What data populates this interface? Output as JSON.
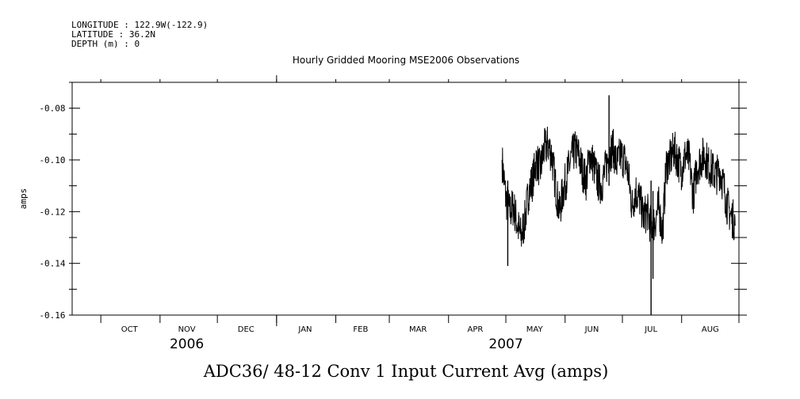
{
  "header": {
    "longitude": "LONGITUDE : 122.9W(-122.9)",
    "latitude": "LATITUDE : 36.2N",
    "depth": "DEPTH (m) : 0"
  },
  "chart_data": {
    "type": "line",
    "title": "Hourly Gridded Mooring MSE2006 Observations",
    "ylabel": "amps",
    "xlabel": "ADC36/ 48-12 Conv 1 Input Current Avg (amps)",
    "x_range": [
      "2006-09-16",
      "2007-08-31"
    ],
    "ylim": [
      -0.16,
      -0.07
    ],
    "y_ticks": [
      -0.08,
      -0.1,
      -0.12,
      -0.14,
      -0.16
    ],
    "y_tick_labels": [
      "-0.08",
      "-0.10",
      "-0.12",
      "-0.14",
      "-0.16"
    ],
    "month_labels": [
      {
        "label": "OCT",
        "date": "2006-10-16"
      },
      {
        "label": "NOV",
        "date": "2006-11-15"
      },
      {
        "label": "DEC",
        "date": "2006-12-16"
      },
      {
        "label": "JAN",
        "date": "2007-01-16"
      },
      {
        "label": "FEB",
        "date": "2007-02-14"
      },
      {
        "label": "MAR",
        "date": "2007-03-16"
      },
      {
        "label": "APR",
        "date": "2007-04-15"
      },
      {
        "label": "MAY",
        "date": "2007-05-16"
      },
      {
        "label": "JUN",
        "date": "2007-06-15"
      },
      {
        "label": "JUL",
        "date": "2007-07-16"
      },
      {
        "label": "AUG",
        "date": "2007-08-16"
      }
    ],
    "year_labels": [
      {
        "label": "2006",
        "date": "2006-11-15"
      },
      {
        "label": "2007",
        "date": "2007-05-01"
      }
    ],
    "series": [
      {
        "color": "#000000",
        "x": [
          "2007-04-29",
          "2007-05-01",
          "2007-05-03",
          "2007-05-05",
          "2007-05-07",
          "2007-05-09",
          "2007-05-11",
          "2007-05-13",
          "2007-05-15",
          "2007-05-17",
          "2007-05-19",
          "2007-05-21",
          "2007-05-23",
          "2007-05-25",
          "2007-05-27",
          "2007-05-29",
          "2007-05-31",
          "2007-06-02",
          "2007-06-04",
          "2007-06-06",
          "2007-06-08",
          "2007-06-10",
          "2007-06-12",
          "2007-06-14",
          "2007-06-16",
          "2007-06-18",
          "2007-06-20",
          "2007-06-22",
          "2007-06-24",
          "2007-06-26",
          "2007-06-28",
          "2007-06-30",
          "2007-07-02",
          "2007-07-04",
          "2007-07-06",
          "2007-07-08",
          "2007-07-10",
          "2007-07-12",
          "2007-07-14",
          "2007-07-16",
          "2007-07-18",
          "2007-07-20",
          "2007-07-22",
          "2007-07-24",
          "2007-07-26",
          "2007-07-28",
          "2007-07-30",
          "2007-08-01",
          "2007-08-03",
          "2007-08-05",
          "2007-08-07",
          "2007-08-09",
          "2007-08-11",
          "2007-08-13",
          "2007-08-15",
          "2007-08-17",
          "2007-08-19",
          "2007-08-21",
          "2007-08-23",
          "2007-08-25",
          "2007-08-27",
          "2007-08-29"
        ],
        "y": [
          -0.1,
          -0.115,
          -0.12,
          -0.118,
          -0.125,
          -0.13,
          -0.123,
          -0.112,
          -0.108,
          -0.1,
          -0.104,
          -0.096,
          -0.094,
          -0.098,
          -0.11,
          -0.12,
          -0.112,
          -0.106,
          -0.1,
          -0.096,
          -0.098,
          -0.104,
          -0.108,
          -0.098,
          -0.102,
          -0.108,
          -0.11,
          -0.104,
          -0.098,
          -0.095,
          -0.102,
          -0.098,
          -0.1,
          -0.105,
          -0.118,
          -0.112,
          -0.115,
          -0.122,
          -0.12,
          -0.126,
          -0.124,
          -0.118,
          -0.128,
          -0.102,
          -0.1,
          -0.096,
          -0.1,
          -0.104,
          -0.098,
          -0.1,
          -0.114,
          -0.103,
          -0.1,
          -0.098,
          -0.102,
          -0.104,
          -0.106,
          -0.104,
          -0.11,
          -0.118,
          -0.122,
          -0.124
        ]
      }
    ],
    "spikes": [
      {
        "date": "2007-05-02",
        "min": -0.141,
        "max": -0.108
      },
      {
        "date": "2007-06-24",
        "min": -0.11,
        "max": -0.075
      },
      {
        "date": "2007-07-16",
        "min": -0.16,
        "max": -0.108
      },
      {
        "date": "2007-07-17",
        "min": -0.146,
        "max": -0.112
      }
    ]
  }
}
